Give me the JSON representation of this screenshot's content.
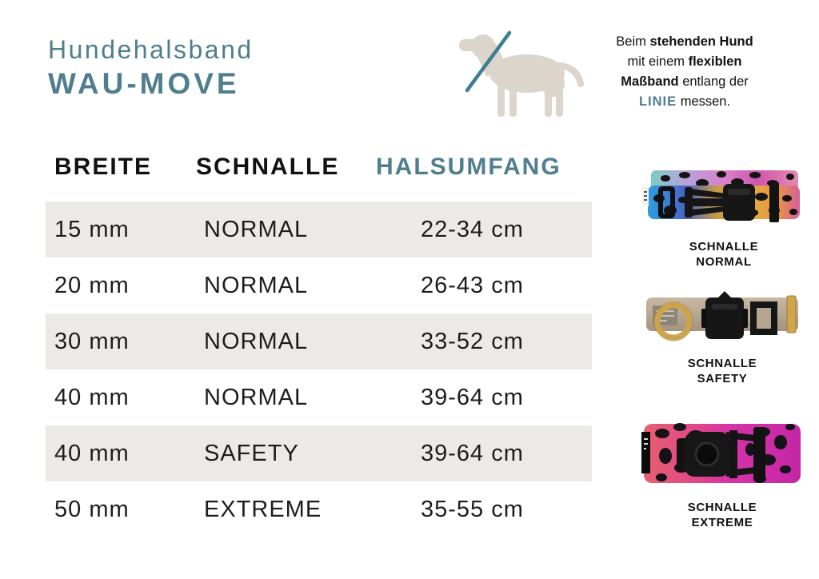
{
  "page": {
    "background": "#ffffff",
    "accent_teal": "#4f7e8d",
    "row_shade": "#ebeae7",
    "text_black": "#1d1d1d"
  },
  "header": {
    "subtitle": "Hundehalsband",
    "title": "WAU-MOVE"
  },
  "dog_figure": {
    "icon": "dog-silhouette-with-measure-line",
    "silhouette_color": "#dbd5cc",
    "line_color": "#3d7f91"
  },
  "measure_note": {
    "lines": [
      {
        "parts": [
          {
            "text": "Beim "
          },
          {
            "text": "stehenden Hund",
            "bold": true
          }
        ]
      },
      {
        "parts": [
          {
            "text": "mit einem "
          },
          {
            "text": "flexiblen",
            "bold": true
          }
        ]
      },
      {
        "parts": [
          {
            "text": "Maßband",
            "bold": true
          },
          {
            "text": " entlang der"
          }
        ]
      },
      {
        "parts": [
          {
            "text": "LINIE",
            "bold": true,
            "accent": true
          },
          {
            "text": " messen."
          }
        ]
      }
    ]
  },
  "table": {
    "headers": [
      "BREITE",
      "SCHNALLE",
      "HALSUMFANG"
    ],
    "rows": [
      [
        "15 mm",
        "NORMAL",
        "22-34 cm"
      ],
      [
        "20 mm",
        "NORMAL",
        "26-43 cm"
      ],
      [
        "30 mm",
        "NORMAL",
        "33-52 cm"
      ],
      [
        "40 mm",
        "NORMAL",
        "39-64 cm"
      ],
      [
        "40 mm",
        "SAFETY",
        "39-64 cm"
      ],
      [
        "50 mm",
        "EXTREME",
        "35-55 cm"
      ]
    ]
  },
  "collars": [
    {
      "caption_line1": "SCHNALLE",
      "caption_line2": "NORMAL",
      "photo": "rainbow-leopard-collar-with-black-side-release-buckle"
    },
    {
      "caption_line1": "SCHNALLE",
      "caption_line2": "SAFETY",
      "photo": "taupe-collar-with-gold-d-ring-and-black-cobra-buckle"
    },
    {
      "caption_line1": "SCHNALLE",
      "caption_line2": "EXTREME",
      "photo": "pink-magenta-leopard-collar-with-heavy-duty-black-buckle"
    }
  ]
}
